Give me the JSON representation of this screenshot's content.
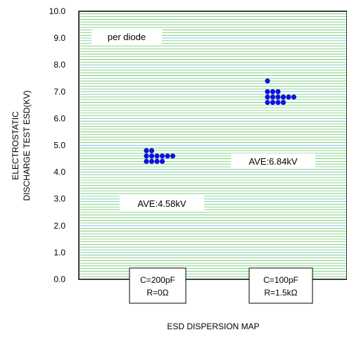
{
  "chart_data": {
    "type": "scatter",
    "title": "",
    "xlabel": "ESD DISPERSION MAP",
    "ylabel_lines": [
      "ELECTROSTATIC",
      "DISCHARGE TEST ESD(KV)"
    ],
    "ylim": [
      0,
      10
    ],
    "yticks": [
      "0.0",
      "1.0",
      "2.0",
      "3.0",
      "4.0",
      "5.0",
      "6.0",
      "7.0",
      "8.0",
      "9.0",
      "10.0"
    ],
    "grid": true,
    "grid_colors": {
      "major": "#7fc7e6",
      "minor": "#66cc66"
    },
    "point_color": "#1010e0",
    "categories": [
      {
        "label_lines": [
          "C=200pF",
          "R=0Ω"
        ]
      },
      {
        "label_lines": [
          "C=100pF",
          "R=1.5kΩ"
        ]
      }
    ],
    "groups": [
      {
        "category_index": 0,
        "points": [
          {
            "y": 4.8,
            "n": 2
          },
          {
            "y": 4.6,
            "n": 6
          },
          {
            "y": 4.4,
            "n": 4
          }
        ]
      },
      {
        "category_index": 1,
        "points": [
          {
            "y": 7.4,
            "n": 1
          },
          {
            "y": 7.0,
            "n": 3
          },
          {
            "y": 6.8,
            "n": 6
          },
          {
            "y": 6.6,
            "n": 4
          }
        ]
      }
    ],
    "annotations": {
      "note": "per diode",
      "ave_1": "AVE:4.58kV",
      "ave_2": "AVE:6.84kV"
    }
  }
}
